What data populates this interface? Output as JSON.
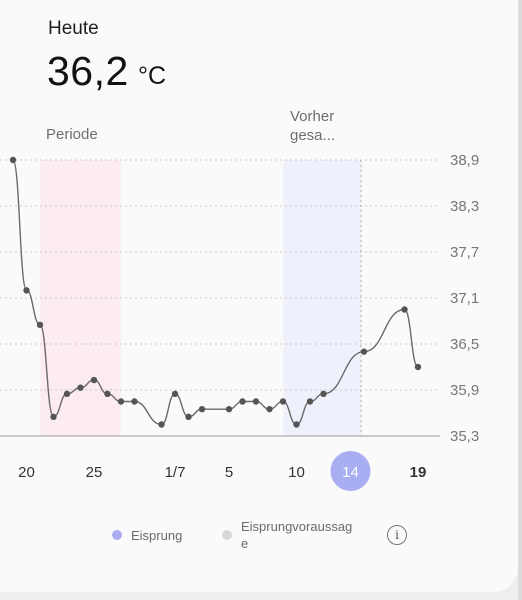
{
  "header": {
    "label": "Heute",
    "temperature": "36,2",
    "unit": "°C"
  },
  "bands": {
    "period_label": "Periode",
    "prediction_label_line1": "Vorher",
    "prediction_label_line2": "gesa..."
  },
  "legend": {
    "ovulation": "Eisprung",
    "prediction_line1": "Eisprungvoraussag",
    "prediction_line2": "e",
    "info_icon": "info-icon"
  },
  "colors": {
    "period_band": "#fcebef",
    "prediction_band": "#eef0fb",
    "selected_day": "#a9adf2",
    "ovulation_dot": "#a9adf2",
    "prediction_dot": "#d8d8d8",
    "line": "#6a6a6a"
  },
  "chart_data": {
    "type": "line",
    "ylabel": "",
    "xlabel": "",
    "y_ticks": [
      "38,9",
      "38,3",
      "37,7",
      "37,1",
      "36,5",
      "35,9",
      "35,3"
    ],
    "ylim": [
      35.3,
      38.9
    ],
    "x_tick_labels": [
      {
        "label": "20",
        "index": 1
      },
      {
        "label": "25",
        "index": 6
      },
      {
        "label": "1/7",
        "index": 12
      },
      {
        "label": "5",
        "index": 16
      },
      {
        "label": "10",
        "index": 21
      },
      {
        "label": "14",
        "index": 25,
        "selected": true
      },
      {
        "label": "19",
        "index": 30,
        "bold": true
      }
    ],
    "period_range": [
      3,
      7
    ],
    "prediction_range": [
      21,
      26
    ],
    "series": [
      {
        "values": [
          {
            "i": 0,
            "v": 38.9
          },
          {
            "i": 1,
            "v": 37.2
          },
          {
            "i": 2,
            "v": 36.75
          },
          {
            "i": 3,
            "v": 35.55
          },
          {
            "i": 4,
            "v": 35.85
          },
          {
            "i": 5,
            "v": 35.93
          },
          {
            "i": 6,
            "v": 36.03
          },
          {
            "i": 7,
            "v": 35.85
          },
          {
            "i": 8,
            "v": 35.75
          },
          {
            "i": 9,
            "v": 35.75
          },
          {
            "i": 11,
            "v": 35.45
          },
          {
            "i": 12,
            "v": 35.85
          },
          {
            "i": 13,
            "v": 35.55
          },
          {
            "i": 14,
            "v": 35.65
          },
          {
            "i": 16,
            "v": 35.65
          },
          {
            "i": 17,
            "v": 35.75
          },
          {
            "i": 18,
            "v": 35.75
          },
          {
            "i": 19,
            "v": 35.65
          },
          {
            "i": 20,
            "v": 35.75
          },
          {
            "i": 21,
            "v": 35.45
          },
          {
            "i": 22,
            "v": 35.75
          },
          {
            "i": 23,
            "v": 35.85
          },
          {
            "i": 26,
            "v": 36.4
          },
          {
            "i": 29,
            "v": 36.95
          },
          {
            "i": 30,
            "v": 36.2
          }
        ]
      }
    ]
  }
}
